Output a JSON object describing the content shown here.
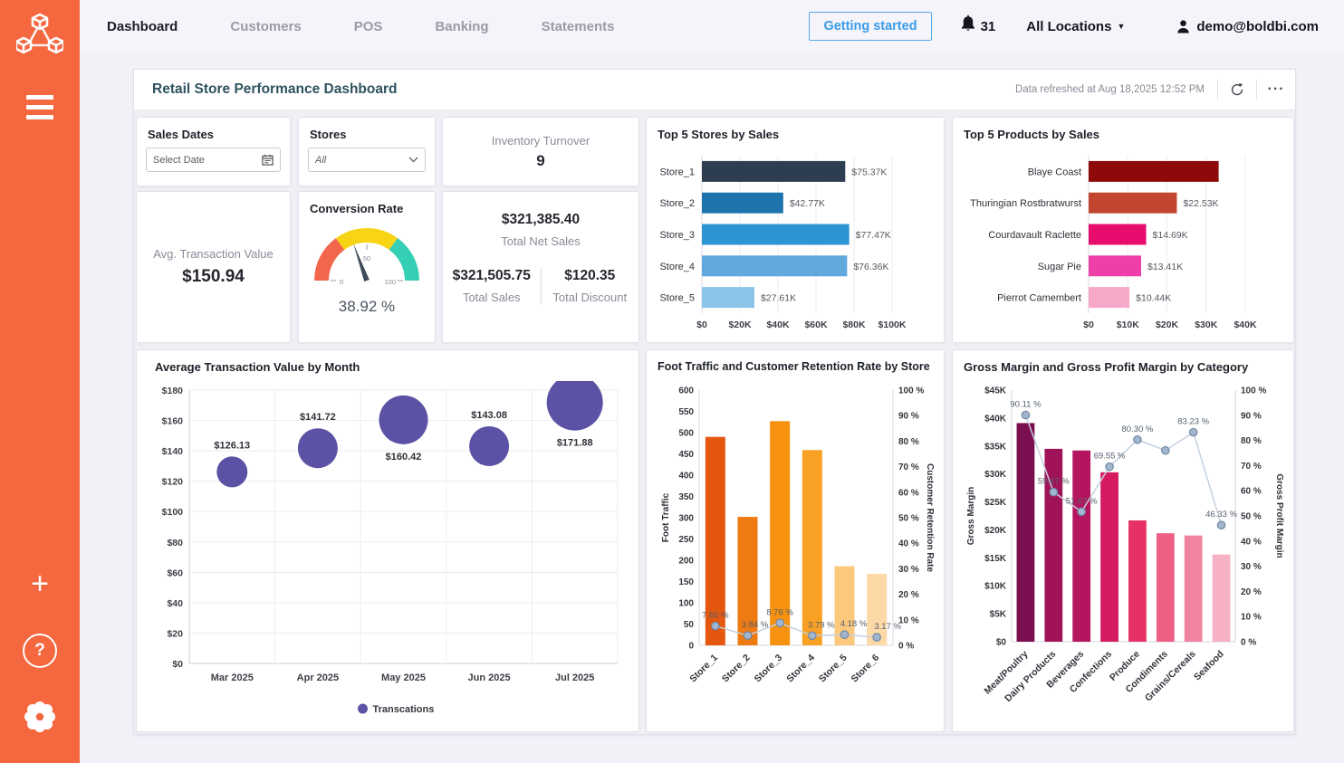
{
  "app": {
    "accent_color": "#f5673f",
    "link_color": "#3b9ce8"
  },
  "sidebar": {
    "logo": "boldbi-cubes-logo"
  },
  "icons": {
    "plus": "+",
    "help": "?",
    "caret": "▼",
    "more": "···"
  },
  "topnav": {
    "items": [
      {
        "label": "Dashboard",
        "active": true
      },
      {
        "label": "Customers",
        "active": false
      },
      {
        "label": "POS",
        "active": false
      },
      {
        "label": "Banking",
        "active": false
      },
      {
        "label": "Statements",
        "active": false
      }
    ],
    "getting_started": "Getting started",
    "notification_count": "31",
    "location": "All Locations",
    "user_email": "demo@boldbi.com"
  },
  "panel": {
    "title": "Retail Store Performance Dashboard",
    "refreshed": "Data refreshed at Aug 18,2025 12:52 PM"
  },
  "filters": {
    "sales_dates": {
      "label": "Sales Dates",
      "placeholder": "Select Date"
    },
    "stores": {
      "label": "Stores",
      "value": "All"
    }
  },
  "kpis": {
    "inventory_turnover": {
      "label": "Inventory Turnover",
      "value": "9"
    },
    "avg_transaction": {
      "label": "Avg. Transaction Value",
      "value": "$150.94"
    },
    "conversion": {
      "title": "Conversion Rate",
      "value": 38.92,
      "value_label": "38.92 %",
      "min": 0,
      "max": 100,
      "ticks": [
        "0",
        "50",
        "100"
      ],
      "segments": [
        {
          "from": 0,
          "to": 30,
          "color": "#f2664c"
        },
        {
          "from": 30,
          "to": 70,
          "color": "#f8d417"
        },
        {
          "from": 70,
          "to": 100,
          "color": "#35cfb5"
        }
      ]
    },
    "net_sales": {
      "value": "$321,385.40",
      "label": "Total Net Sales"
    },
    "total_sales": {
      "value": "$321,505.75",
      "label": "Total Sales"
    },
    "total_discount": {
      "value": "$120.35",
      "label": "Total Discount"
    }
  },
  "chart_data": [
    {
      "id": "top5-stores",
      "type": "barh",
      "title": "Top 5 Stores by Sales",
      "categories": [
        "Store_1",
        "Store_2",
        "Store_3",
        "Store_4",
        "Store_5"
      ],
      "values": [
        75.37,
        42.77,
        77.47,
        76.36,
        27.61
      ],
      "labels": [
        "$75.37K",
        "$42.77K",
        "$77.47K",
        "$76.36K",
        "$27.61K"
      ],
      "colors": [
        "#2c3e50",
        "#1f74ad",
        "#2e95d3",
        "#61a8dc",
        "#8bc4e9"
      ],
      "xmax": 100,
      "xticks": [
        "$0",
        "$20K",
        "$40K",
        "$60K",
        "$80K",
        "$100K"
      ],
      "unit": "USD thousands"
    },
    {
      "id": "top5-products",
      "type": "barh",
      "title": "Top 5 Products by Sales",
      "categories": [
        "Blaye Coast",
        "Thuringian Rostbratwurst",
        "Courdavault Raclette",
        "Sugar Pie",
        "Pierrot Camembert"
      ],
      "values": [
        33.2,
        22.53,
        14.69,
        13.41,
        10.44
      ],
      "labels": [
        "",
        "$22.53K",
        "$14.69K",
        "$13.41K",
        "$10.44K"
      ],
      "colors": [
        "#8e0a0a",
        "#c2452f",
        "#e60d6f",
        "#ee3ea8",
        "#f7a8c8"
      ],
      "xmax": 40,
      "xticks": [
        "$0",
        "$10K",
        "$20K",
        "$30K",
        "$40K"
      ],
      "unit": "USD thousands"
    },
    {
      "id": "avg-transaction-by-month",
      "type": "bubble",
      "title": "Average Transaction Value by Month",
      "categories": [
        "Mar 2025",
        "Apr 2025",
        "May 2025",
        "Jun 2025",
        "Jul 2025"
      ],
      "values": [
        126.13,
        141.72,
        160.42,
        143.08,
        171.88
      ],
      "labels": [
        "$126.13",
        "$141.72",
        "$160.42",
        "$143.08",
        "$171.88"
      ],
      "label_pos": [
        "above",
        "above",
        "below",
        "above",
        "below"
      ],
      "radii": [
        17,
        22,
        27,
        22,
        31
      ],
      "ymax": 180,
      "yticks": [
        "$0",
        "$20",
        "$40",
        "$60",
        "$80",
        "$100",
        "$120",
        "$140",
        "$160",
        "$180"
      ],
      "color": "#5b52a5",
      "legend": "Transcations"
    },
    {
      "id": "foot-traffic-retention",
      "type": "combo",
      "title": "Foot Traffic and Customer Retention Rate by Store",
      "categories": [
        "Store_1",
        "Store_2",
        "Store_3",
        "Store_4",
        "Store_5",
        "Store_6"
      ],
      "bar_values": [
        490,
        302,
        527,
        459,
        186,
        168
      ],
      "bar_colors": [
        "#e4570e",
        "#ee7a12",
        "#f79210",
        "#f9a125",
        "#fbc87e",
        "#fcd9a6"
      ],
      "line_values": [
        7.6,
        3.84,
        8.76,
        3.79,
        4.18,
        3.17
      ],
      "line_labels": [
        "7.60 %",
        "3.84 %",
        "8.76 %",
        "3.79 %",
        "4.18 %",
        "3.17 %"
      ],
      "left_max": 600,
      "left_ticks": [
        "0",
        "50",
        "100",
        "150",
        "200",
        "250",
        "300",
        "350",
        "400",
        "450",
        "500",
        "550",
        "600"
      ],
      "right_max": 100,
      "right_ticks": [
        "0 %",
        "10 %",
        "20 %",
        "30 %",
        "40 %",
        "50 %",
        "60 %",
        "70 %",
        "80 %",
        "90 %",
        "100 %"
      ],
      "left_title": "Foot Traffic",
      "right_title": "Customer Retention Rate"
    },
    {
      "id": "gross-margin-by-category",
      "type": "combo",
      "title": "Gross Margin and Gross Profit Margin by Category",
      "categories": [
        "Meat/Poultry",
        "Dairy Products",
        "Beverages",
        "Confections",
        "Produce",
        "Condiments",
        "Grains/Cereals",
        "Seafood"
      ],
      "bar_values": [
        39.1,
        34.5,
        34.2,
        30.3,
        21.7,
        19.4,
        19.0,
        15.6
      ],
      "bar_colors": [
        "#7a0e4f",
        "#a01358",
        "#b4155e",
        "#d51a61",
        "#e73166",
        "#ee5f84",
        "#f283a0",
        "#f6b1c4"
      ],
      "line_values": [
        90.11,
        59.47,
        51.67,
        69.55,
        80.3,
        76.0,
        83.23,
        46.33
      ],
      "line_labels": [
        "90.11 %",
        "59.47 %",
        "51.67 %",
        "69.55 %",
        "80.30 %",
        "",
        "83.23 %",
        "46.33 %"
      ],
      "left_max": 45,
      "left_ticks": [
        "$0",
        "$5K",
        "$10K",
        "$15K",
        "$20K",
        "$25K",
        "$30K",
        "$35K",
        "$40K",
        "$45K"
      ],
      "right_max": 100,
      "right_ticks": [
        "0 %",
        "10 %",
        "20 %",
        "30 %",
        "40 %",
        "50 %",
        "60 %",
        "70 %",
        "80 %",
        "90 %",
        "100 %"
      ],
      "left_title": "Gross Margin",
      "right_title": "Gross Profit Margin"
    }
  ]
}
